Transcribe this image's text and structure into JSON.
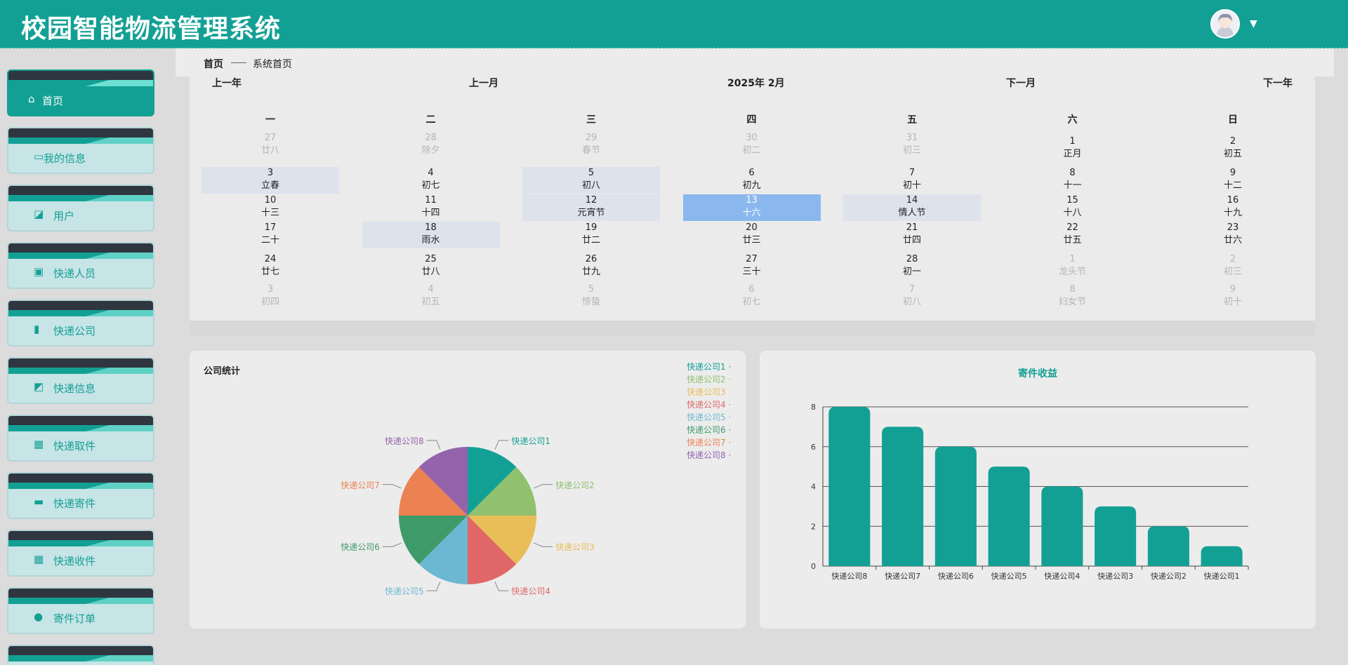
{
  "header": {
    "title": "校园智能物流管理系统"
  },
  "sidebar": {
    "items": [
      {
        "label": "首页",
        "icon": "home-icon",
        "glyph": "⌂",
        "active": true
      },
      {
        "label": "我的信息",
        "icon": "id-card-icon",
        "glyph": "▭"
      },
      {
        "label": "用户",
        "icon": "user-icon",
        "glyph": "◪"
      },
      {
        "label": "快递人员",
        "icon": "clipboard-icon",
        "glyph": "▣"
      },
      {
        "label": "快递公司",
        "icon": "bar-chart-icon",
        "glyph": "▮"
      },
      {
        "label": "快递信息",
        "icon": "line-chart-icon",
        "glyph": "◩"
      },
      {
        "label": "快递取件",
        "icon": "grid-icon",
        "glyph": "▦"
      },
      {
        "label": "快递寄件",
        "icon": "ticket-icon",
        "glyph": "▬"
      },
      {
        "label": "快递收件",
        "icon": "grid-icon",
        "glyph": "▦"
      },
      {
        "label": "寄件订单",
        "icon": "bulb-icon",
        "glyph": "●"
      }
    ]
  },
  "breadcrumb": {
    "home": "首页",
    "current": "系统首页"
  },
  "calendar": {
    "prev_year": "上一年",
    "prev_month": "上一月",
    "title": "2025年 2月",
    "next_month": "下一月",
    "next_year": "下一年",
    "weekdays": [
      "一",
      "二",
      "三",
      "四",
      "五",
      "六",
      "日"
    ],
    "weeks": [
      [
        {
          "d": "27",
          "l": "廿八",
          "o": true
        },
        {
          "d": "28",
          "l": "除夕",
          "o": true
        },
        {
          "d": "29",
          "l": "春节",
          "o": true
        },
        {
          "d": "30",
          "l": "初二",
          "o": true
        },
        {
          "d": "31",
          "l": "初三",
          "o": true
        },
        {
          "d": "1",
          "l": "正月"
        },
        {
          "d": "2",
          "l": "初五"
        }
      ],
      [
        {
          "d": "3",
          "l": "立春",
          "h": true
        },
        {
          "d": "4",
          "l": "初七"
        },
        {
          "d": "5",
          "l": "初八",
          "h": true
        },
        {
          "d": "6",
          "l": "初九"
        },
        {
          "d": "7",
          "l": "初十"
        },
        {
          "d": "8",
          "l": "十一"
        },
        {
          "d": "9",
          "l": "十二"
        }
      ],
      [
        {
          "d": "10",
          "l": "十三"
        },
        {
          "d": "11",
          "l": "十四"
        },
        {
          "d": "12",
          "l": "元宵节",
          "h": true
        },
        {
          "d": "13",
          "l": "十六",
          "t": true
        },
        {
          "d": "14",
          "l": "情人节",
          "h": true
        },
        {
          "d": "15",
          "l": "十八"
        },
        {
          "d": "16",
          "l": "十九"
        }
      ],
      [
        {
          "d": "17",
          "l": "二十"
        },
        {
          "d": "18",
          "l": "雨水",
          "h": true
        },
        {
          "d": "19",
          "l": "廿二"
        },
        {
          "d": "20",
          "l": "廿三"
        },
        {
          "d": "21",
          "l": "廿四"
        },
        {
          "d": "22",
          "l": "廿五"
        },
        {
          "d": "23",
          "l": "廿六"
        }
      ],
      [
        {
          "d": "24",
          "l": "廿七"
        },
        {
          "d": "25",
          "l": "廿八"
        },
        {
          "d": "26",
          "l": "廿九"
        },
        {
          "d": "27",
          "l": "三十"
        },
        {
          "d": "28",
          "l": "初一"
        },
        {
          "d": "1",
          "l": "龙头节",
          "o": true
        },
        {
          "d": "2",
          "l": "初三",
          "o": true
        }
      ],
      [
        {
          "d": "3",
          "l": "初四",
          "o": true
        },
        {
          "d": "4",
          "l": "初五",
          "o": true
        },
        {
          "d": "5",
          "l": "惊蛰",
          "o": true
        },
        {
          "d": "6",
          "l": "初七",
          "o": true
        },
        {
          "d": "7",
          "l": "初八",
          "o": true
        },
        {
          "d": "8",
          "l": "妇女节",
          "o": true
        },
        {
          "d": "9",
          "l": "初十",
          "o": true
        }
      ]
    ]
  },
  "pie_panel": {
    "title": "公司统计"
  },
  "bar_panel": {
    "title": "寄件收益"
  },
  "colors": {
    "brand": "#13a094",
    "palette": [
      "#13a094",
      "#8fc16e",
      "#e9bd58",
      "#e06767",
      "#6cb8d2",
      "#3f9a69",
      "#ec8152",
      "#9463ab"
    ]
  },
  "chart_data": [
    {
      "type": "pie",
      "title": "公司统计",
      "categories": [
        "快递公司1",
        "快递公司2",
        "快递公司3",
        "快递公司4",
        "快递公司5",
        "快递公司6",
        "快递公司7",
        "快递公司8"
      ],
      "values": [
        1,
        1,
        1,
        1,
        1,
        1,
        1,
        1
      ],
      "legend": "top-right"
    },
    {
      "type": "bar",
      "title": "寄件收益",
      "categories": [
        "快递公司8",
        "快递公司7",
        "快递公司6",
        "快递公司5",
        "快递公司4",
        "快递公司3",
        "快递公司2",
        "快递公司1"
      ],
      "values": [
        8,
        7,
        6,
        5,
        4,
        3,
        2,
        1
      ],
      "yticks": [
        "0",
        "2",
        "4",
        "6",
        "8"
      ],
      "ylim": [
        0,
        8
      ],
      "grid": true
    }
  ]
}
